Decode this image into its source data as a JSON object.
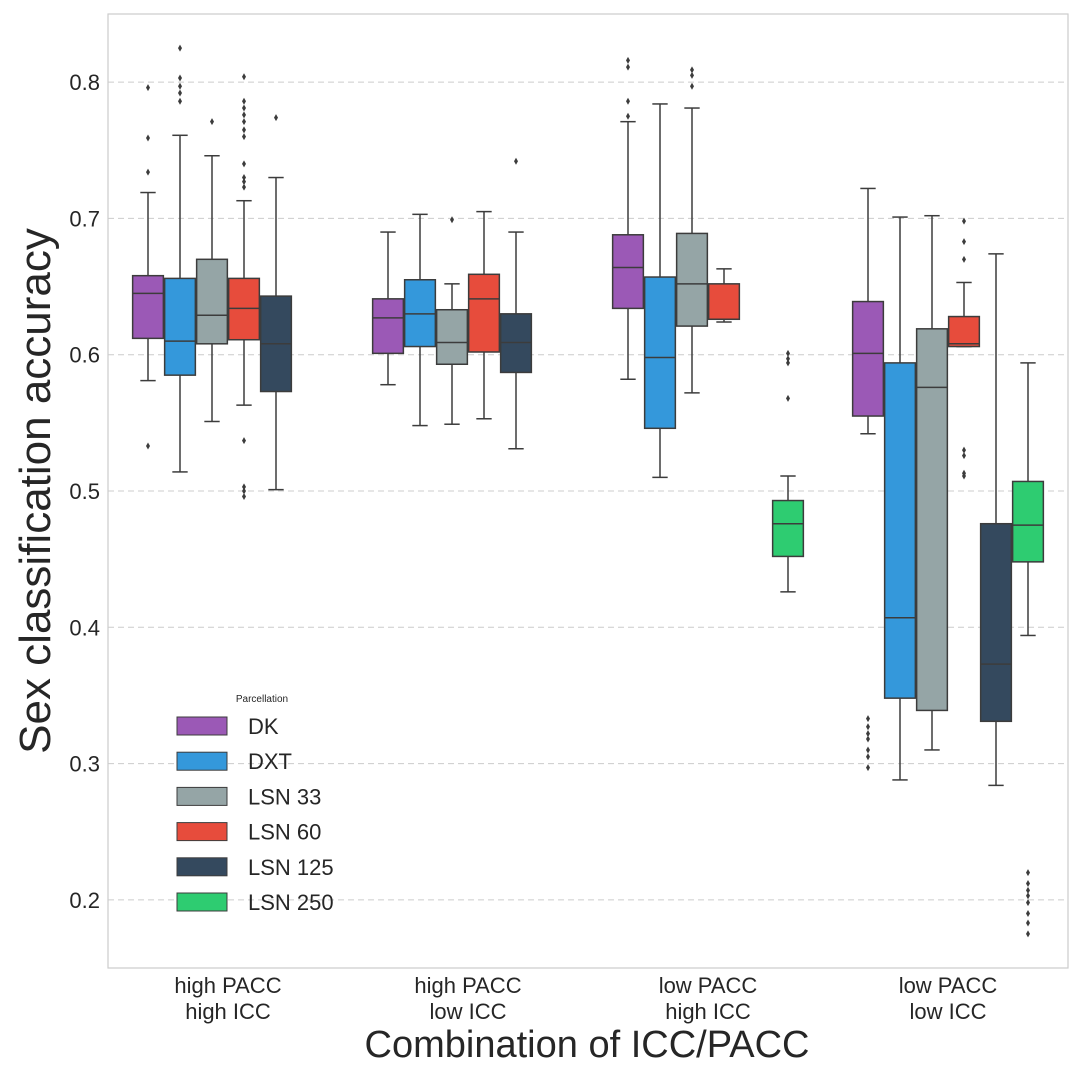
{
  "chart_data": {
    "type": "box",
    "title": "",
    "xlabel": "Combination of ICC/PACC",
    "ylabel": "Sex classification accuracy",
    "ylim": [
      0.15,
      0.85
    ],
    "yticks": [
      "0.2",
      "0.3",
      "0.4",
      "0.5",
      "0.6",
      "0.7",
      "0.8"
    ],
    "grid": "horizontal dashed",
    "categories": [
      [
        "high PACC",
        "high ICC"
      ],
      [
        "high PACC",
        "low ICC"
      ],
      [
        "low PACC",
        "high ICC"
      ],
      [
        "low PACC",
        "low ICC"
      ]
    ],
    "legend": {
      "title": "Parcellation",
      "placement": "lower-left",
      "entries": [
        "DK",
        "DXT",
        "LSN 33",
        "LSN 60",
        "LSN 125",
        "LSN 250"
      ]
    },
    "colors": [
      "#9b59b6",
      "#3498db",
      "#95a5a6",
      "#e74c3c",
      "#34495e",
      "#2ecc71"
    ],
    "series": [
      {
        "name": "DK",
        "boxes": [
          {
            "whislo": 0.581,
            "q1": 0.612,
            "med": 0.645,
            "q3": 0.658,
            "whishi": 0.719,
            "fliers": [
              0.796,
              0.759,
              0.734,
              0.533
            ]
          },
          {
            "whislo": 0.578,
            "q1": 0.601,
            "med": 0.627,
            "q3": 0.641,
            "whishi": 0.69,
            "fliers": []
          },
          {
            "whislo": 0.582,
            "q1": 0.634,
            "med": 0.664,
            "q3": 0.688,
            "whishi": 0.771,
            "fliers": [
              0.816,
              0.811,
              0.786,
              0.775
            ]
          },
          {
            "whislo": 0.542,
            "q1": 0.555,
            "med": 0.601,
            "q3": 0.639,
            "whishi": 0.722,
            "fliers": [
              0.333,
              0.327,
              0.322,
              0.318,
              0.31,
              0.305,
              0.297
            ]
          }
        ]
      },
      {
        "name": "DXT",
        "boxes": [
          {
            "whislo": 0.514,
            "q1": 0.585,
            "med": 0.61,
            "q3": 0.656,
            "whishi": 0.761,
            "fliers": [
              0.825,
              0.803,
              0.797,
              0.792,
              0.786
            ]
          },
          {
            "whislo": 0.548,
            "q1": 0.606,
            "med": 0.63,
            "q3": 0.655,
            "whishi": 0.703,
            "fliers": []
          },
          {
            "whislo": 0.51,
            "q1": 0.546,
            "med": 0.598,
            "q3": 0.657,
            "whishi": 0.784,
            "fliers": []
          },
          {
            "whislo": 0.288,
            "q1": 0.348,
            "med": 0.407,
            "q3": 0.594,
            "whishi": 0.701,
            "fliers": []
          }
        ]
      },
      {
        "name": "LSN 33",
        "boxes": [
          {
            "whislo": 0.551,
            "q1": 0.608,
            "med": 0.629,
            "q3": 0.67,
            "whishi": 0.746,
            "fliers": [
              0.771
            ]
          },
          {
            "whislo": 0.549,
            "q1": 0.593,
            "med": 0.609,
            "q3": 0.633,
            "whishi": 0.652,
            "fliers": [
              0.699
            ]
          },
          {
            "whislo": 0.572,
            "q1": 0.621,
            "med": 0.652,
            "q3": 0.689,
            "whishi": 0.781,
            "fliers": [
              0.809,
              0.805,
              0.797
            ]
          },
          {
            "whislo": 0.31,
            "q1": 0.339,
            "med": 0.576,
            "q3": 0.619,
            "whishi": 0.702,
            "fliers": []
          }
        ]
      },
      {
        "name": "LSN 60",
        "boxes": [
          {
            "whislo": 0.563,
            "q1": 0.611,
            "med": 0.634,
            "q3": 0.656,
            "whishi": 0.713,
            "fliers": [
              0.804,
              0.786,
              0.781,
              0.776,
              0.771,
              0.765,
              0.76,
              0.74,
              0.73,
              0.727,
              0.723,
              0.537,
              0.503,
              0.5,
              0.496
            ]
          },
          {
            "whislo": 0.553,
            "q1": 0.602,
            "med": 0.641,
            "q3": 0.659,
            "whishi": 0.705,
            "fliers": []
          },
          {
            "whislo": 0.624,
            "q1": 0.626,
            "med": 0.626,
            "q3": 0.652,
            "whishi": 0.663,
            "fliers": []
          },
          {
            "whislo": 0.606,
            "q1": 0.606,
            "med": 0.608,
            "q3": 0.628,
            "whishi": 0.653,
            "fliers": [
              0.698,
              0.683,
              0.67,
              0.53,
              0.526,
              0.513,
              0.511
            ]
          }
        ]
      },
      {
        "name": "LSN 125",
        "boxes": [
          {
            "whislo": 0.501,
            "q1": 0.573,
            "med": 0.608,
            "q3": 0.643,
            "whishi": 0.73,
            "fliers": [
              0.774
            ]
          },
          {
            "whislo": 0.531,
            "q1": 0.587,
            "med": 0.609,
            "q3": 0.63,
            "whishi": 0.69,
            "fliers": [
              0.742
            ]
          },
          null,
          {
            "whislo": 0.284,
            "q1": 0.331,
            "med": 0.373,
            "q3": 0.476,
            "whishi": 0.674,
            "fliers": []
          }
        ]
      },
      {
        "name": "LSN 250",
        "boxes": [
          null,
          null,
          {
            "whislo": 0.426,
            "q1": 0.452,
            "med": 0.476,
            "q3": 0.493,
            "whishi": 0.511,
            "fliers": [
              0.601,
              0.597,
              0.594,
              0.568
            ]
          },
          {
            "whislo": 0.394,
            "q1": 0.448,
            "med": 0.475,
            "q3": 0.507,
            "whishi": 0.594,
            "fliers": [
              0.22,
              0.212,
              0.207,
              0.203,
              0.198,
              0.19,
              0.183,
              0.175
            ]
          }
        ]
      }
    ]
  }
}
